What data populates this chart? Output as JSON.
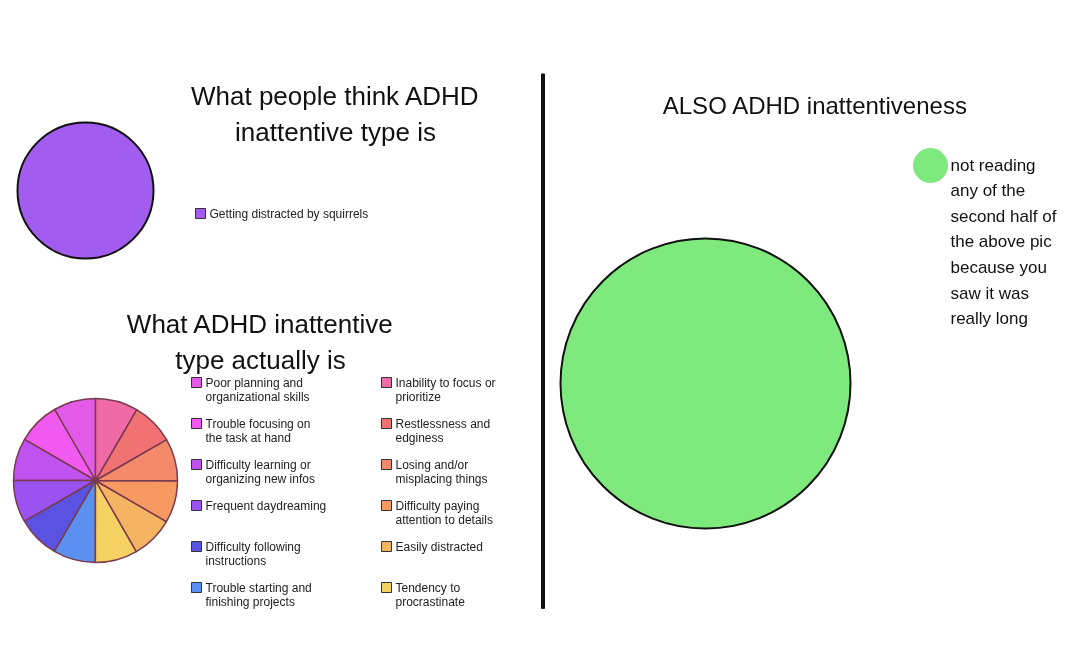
{
  "chart_data": [
    {
      "type": "pie",
      "title": "What people think ADHD inattentive type is",
      "categories": [
        "Getting distracted by squirrels"
      ],
      "values": [
        100
      ],
      "colors": [
        "#a35cf0"
      ],
      "legend": "right"
    },
    {
      "type": "pie",
      "title": "What ADHD inattentive type actually is",
      "categories": [
        "Poor planning and organizational skills",
        "Trouble focusing on the task at hand",
        "Difficulty learning or organizing new infos",
        "Frequent daydreaming",
        "Difficulty following instructions",
        "Trouble starting and finishing projects",
        "Tendency to procrastinate",
        "Easily distracted",
        "Difficulty paying attention to details",
        "Losing and/or misplacing things",
        "Restlessness and edginess",
        "Inability to focus or prioritize"
      ],
      "values": [
        8.33,
        8.33,
        8.33,
        8.33,
        8.33,
        8.33,
        8.33,
        8.33,
        8.33,
        8.33,
        8.33,
        8.37
      ],
      "colors": [
        "#e45ae8",
        "#f05af0",
        "#c052f0",
        "#9a52f0",
        "#5a52e0",
        "#5b8ff0",
        "#f5d062",
        "#f5b462",
        "#f79a62",
        "#f58a6a",
        "#f07272",
        "#f06aa8"
      ],
      "legend": "right"
    },
    {
      "type": "pie",
      "title": "ALSO ADHD inattentiveness",
      "categories": [
        "not reading any of the second half of the above pic because you saw it was really long"
      ],
      "values": [
        100
      ],
      "colors": [
        "#7eea7e"
      ],
      "legend": "top right"
    }
  ]
}
